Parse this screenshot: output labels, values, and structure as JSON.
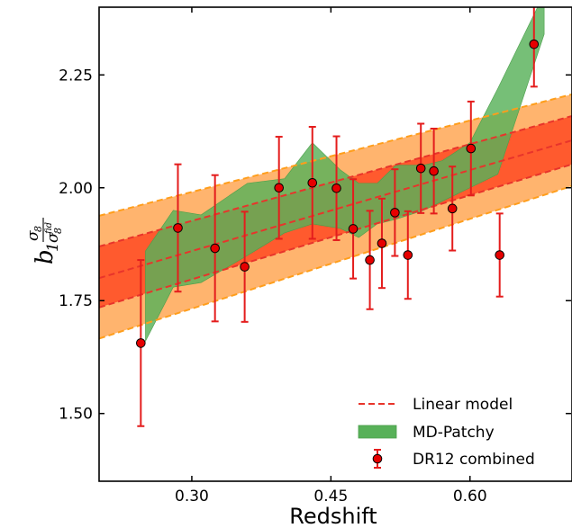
{
  "chart_data": {
    "type": "scatter",
    "title": "",
    "xlabel": "Redshift",
    "ylabel": {
      "base": "b",
      "sub": "1",
      "num": "σ",
      "num_sub": "8",
      "den": "σ",
      "den_sub": "8",
      "den_sup": "fid"
    },
    "xlim": [
      0.2,
      0.71
    ],
    "ylim": [
      1.35,
      2.4
    ],
    "xticks": [
      0.3,
      0.45,
      0.6
    ],
    "xtick_labels": [
      "0.30",
      "0.45",
      "0.60"
    ],
    "yticks": [
      1.5,
      1.75,
      2.0,
      2.25
    ],
    "ytick_labels": [
      "1.50",
      "1.75",
      "2.00",
      "2.25"
    ],
    "grid": false,
    "legend_position": "bottom-right",
    "legend": [
      {
        "label": "Linear model",
        "kind": "dashed-line"
      },
      {
        "label": "MD-Patchy",
        "kind": "patch"
      },
      {
        "label": "DR12 combined",
        "kind": "errorbar-marker"
      }
    ],
    "linear_model": {
      "x": [
        0.2,
        0.71
      ],
      "center": [
        1.8,
        2.105
      ],
      "inner_lower": [
        1.735,
        2.052
      ],
      "inner_upper": [
        1.87,
        2.159
      ],
      "outer_lower": [
        1.666,
        2.004
      ],
      "outer_upper": [
        1.938,
        2.207
      ]
    },
    "md_patchy": {
      "x": [
        0.25,
        0.28,
        0.31,
        0.36,
        0.4,
        0.43,
        0.46,
        0.48,
        0.5,
        0.52,
        0.55,
        0.57,
        0.6,
        0.63,
        0.68
      ],
      "upper": [
        1.86,
        1.95,
        1.94,
        2.01,
        2.02,
        2.1,
        2.04,
        2.01,
        2.01,
        2.05,
        2.05,
        2.06,
        2.1,
        2.22,
        2.43
      ],
      "lower": [
        1.66,
        1.78,
        1.79,
        1.85,
        1.9,
        1.92,
        1.91,
        1.89,
        1.92,
        1.93,
        1.95,
        1.97,
        2.0,
        2.03,
        2.34
      ]
    },
    "series": [
      {
        "name": "DR12 combined",
        "x": [
          0.245,
          0.285,
          0.325,
          0.357,
          0.394,
          0.43,
          0.456,
          0.474,
          0.492,
          0.505,
          0.519,
          0.533,
          0.547,
          0.561,
          0.581,
          0.601,
          0.632,
          0.669
        ],
        "y": [
          1.656,
          1.911,
          1.866,
          1.825,
          2.0,
          2.011,
          1.999,
          1.909,
          1.84,
          1.877,
          1.945,
          1.851,
          2.043,
          2.037,
          1.954,
          2.087,
          1.851,
          2.318
        ],
        "yerr": [
          0.184,
          0.141,
          0.162,
          0.122,
          0.113,
          0.124,
          0.115,
          0.11,
          0.109,
          0.099,
          0.096,
          0.097,
          0.099,
          0.094,
          0.093,
          0.104,
          0.092,
          0.094
        ]
      }
    ],
    "colors": {
      "linear_line": "#e8342b",
      "inner_band": "#ff5a2e",
      "outer_band": "#ffb46e",
      "outer_band_edge": "#ff9e1b",
      "patchy": "#58b159",
      "patchy_edge": "#4a9e4a",
      "point_fill": "#e60000",
      "errorbar": "#e41d1d"
    }
  }
}
